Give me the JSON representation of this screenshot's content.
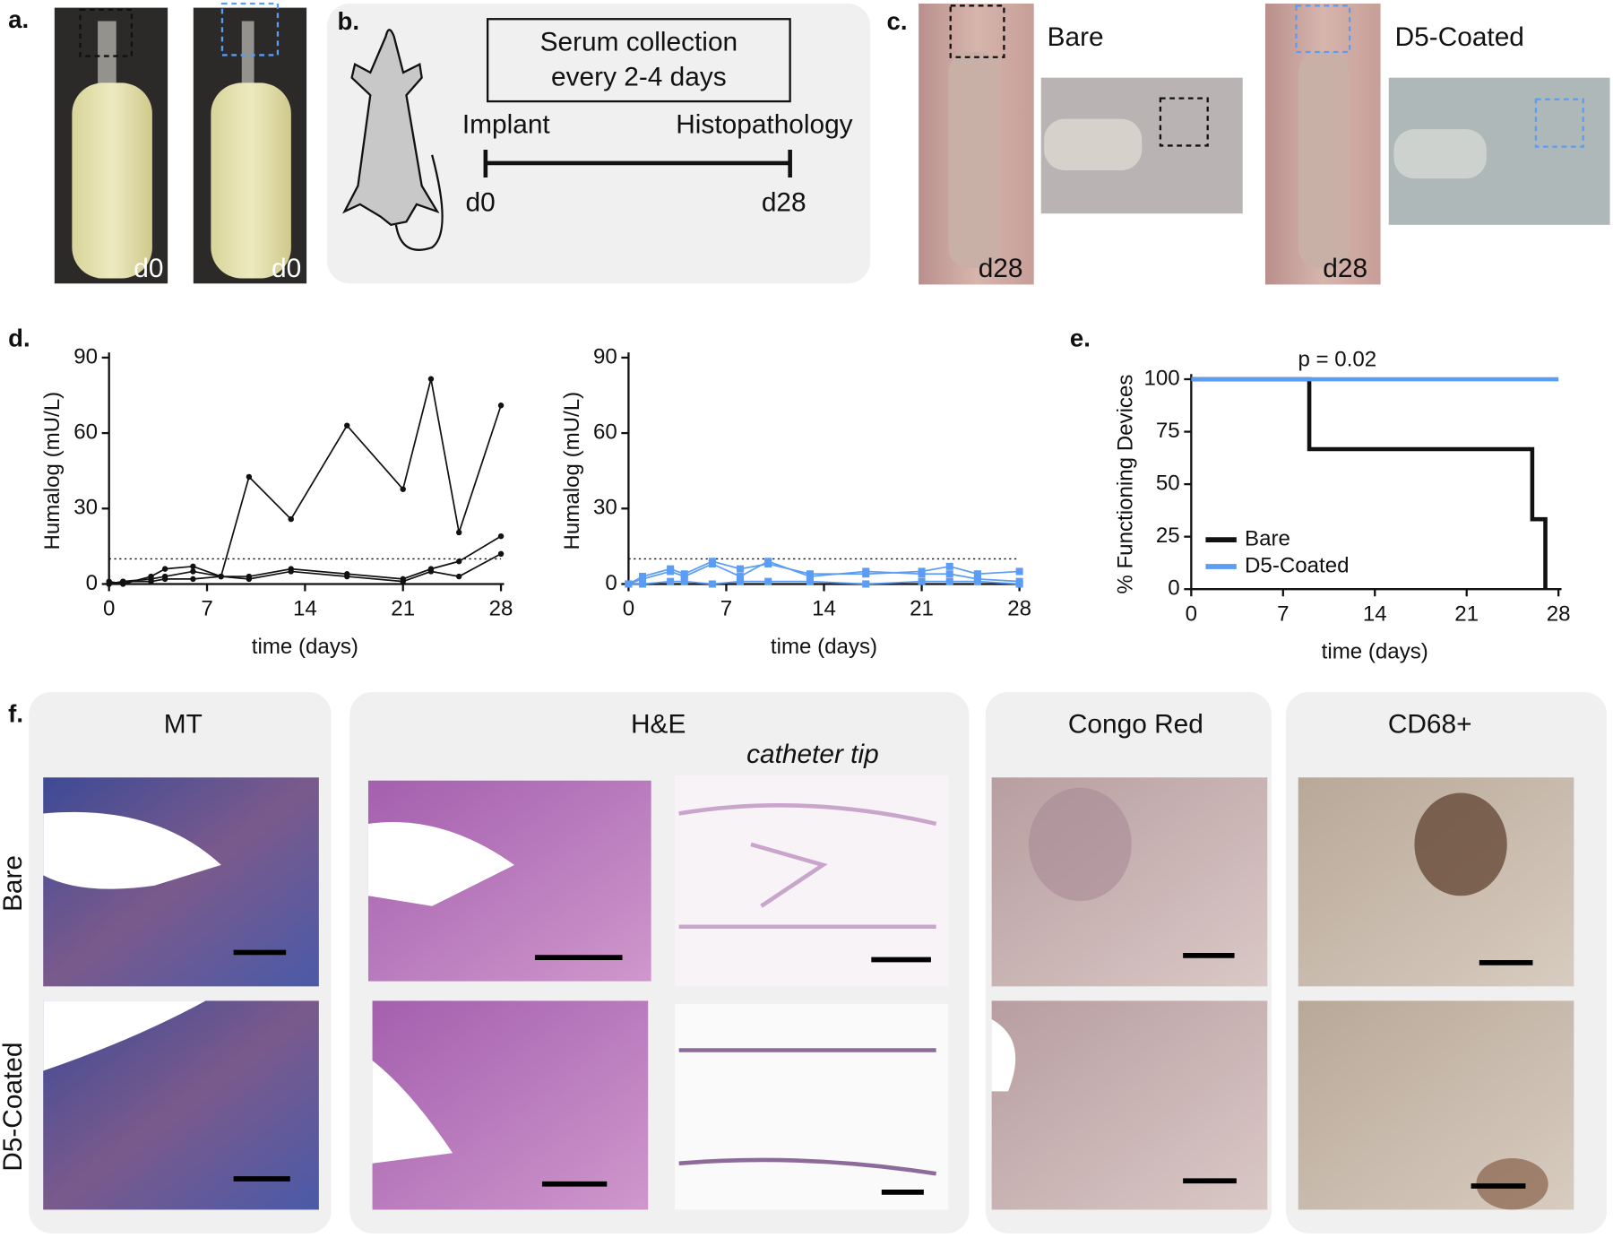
{
  "panels": {
    "a": {
      "label": "a.",
      "photo_labels": [
        "d0",
        "d0"
      ]
    },
    "b": {
      "label": "b.",
      "box_text": [
        "Serum collection",
        "every 2-4 days"
      ],
      "start": "Implant",
      "end": "Histopathology",
      "start_day": "d0",
      "end_day": "d28"
    },
    "c": {
      "label": "c.",
      "groups": [
        {
          "title": "Bare",
          "day": "d28"
        },
        {
          "title": "D5-Coated",
          "day": "d28"
        }
      ]
    },
    "d": {
      "label": "d."
    },
    "e": {
      "label": "e."
    },
    "f": {
      "label": "f.",
      "columns": [
        "MT",
        "H&E",
        "Congo Red",
        "CD68+"
      ],
      "subcolumn": "catheter tip",
      "rows": [
        "Bare",
        "D5-Coated"
      ]
    }
  },
  "chart_data": [
    {
      "type": "line",
      "xlabel": "time (days)",
      "ylabel": "Humalog (mU/L)",
      "xlim": [
        0,
        28
      ],
      "ylim": [
        0,
        90
      ],
      "xticks": [
        0,
        7,
        14,
        21,
        28
      ],
      "yticks": [
        0,
        30,
        60,
        90
      ],
      "hline": 10,
      "marker": "circle",
      "x": [
        0,
        1,
        3,
        4,
        6,
        8,
        10,
        13,
        17,
        21,
        23,
        25,
        28
      ],
      "series": [
        {
          "color": "#111111",
          "values": [
            0,
            1,
            1,
            2,
            2,
            3,
            42.6,
            25.8,
            63,
            37.7,
            81.5,
            20.5,
            71
          ]
        },
        {
          "color": "#111111",
          "values": [
            1,
            0,
            3,
            6,
            7,
            3,
            3,
            6,
            4,
            2,
            6,
            9,
            19
          ]
        },
        {
          "color": "#111111",
          "values": [
            0,
            1,
            2,
            3,
            5,
            3,
            2,
            5,
            3,
            1,
            5,
            3,
            12
          ]
        }
      ]
    },
    {
      "type": "line",
      "xlabel": "time (days)",
      "ylabel": "Humalog (mU/L)",
      "xlim": [
        0,
        28
      ],
      "ylim": [
        0,
        90
      ],
      "xticks": [
        0,
        7,
        14,
        21,
        28
      ],
      "yticks": [
        0,
        30,
        60,
        90
      ],
      "hline": 10,
      "marker": "square",
      "x": [
        0,
        1,
        3,
        4,
        6,
        8,
        10,
        13,
        17,
        21,
        23,
        25,
        28
      ],
      "series": [
        {
          "color": "#5b9cf4",
          "values": [
            0,
            3,
            6,
            4,
            9,
            6,
            8,
            4,
            4,
            5,
            7,
            4,
            5
          ]
        },
        {
          "color": "#5b9cf4",
          "values": [
            0,
            2,
            5,
            3,
            8,
            3,
            9,
            3,
            5,
            4,
            4,
            2,
            1
          ]
        },
        {
          "color": "#5b9cf4",
          "values": [
            0,
            0,
            1,
            1,
            0,
            1,
            1,
            1,
            0,
            1,
            1,
            1,
            0
          ]
        }
      ]
    },
    {
      "type": "line",
      "xlabel": "time (days)",
      "ylabel": "% Functioning Devices",
      "xlim": [
        0,
        28
      ],
      "ylim": [
        0,
        100
      ],
      "xticks": [
        0,
        7,
        14,
        21,
        28
      ],
      "yticks": [
        0,
        25,
        50,
        75,
        100
      ],
      "annotation": "p = 0.02",
      "legend": "lower left",
      "series": [
        {
          "name": "Bare",
          "color": "#111111",
          "x": [
            0,
            9,
            9,
            26,
            26,
            27,
            27
          ],
          "values": [
            100,
            100,
            66.7,
            66.7,
            33.3,
            33.3,
            0
          ]
        },
        {
          "name": "D5-Coated",
          "color": "#5b9cf4",
          "x": [
            0,
            28
          ],
          "values": [
            100,
            100
          ]
        }
      ]
    }
  ]
}
